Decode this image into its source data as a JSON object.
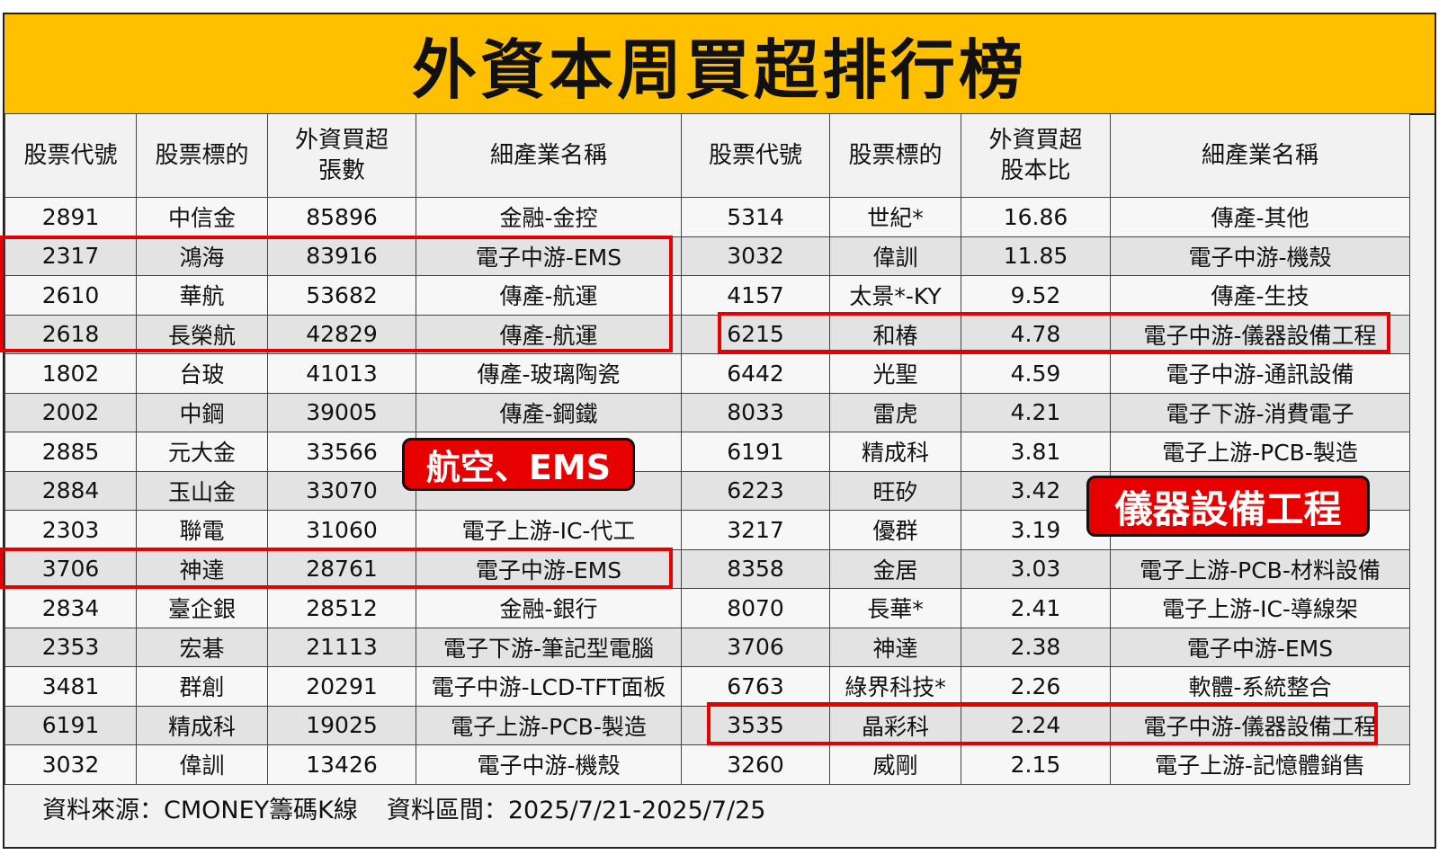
{
  "title": "外資本周買超排行榜",
  "left_headers": [
    "股票代號",
    "股票標的",
    "外資買超\n張數",
    "細產業名稱"
  ],
  "right_headers": [
    "股票代號",
    "股票標的",
    "外資買超\n股本比",
    "細產業名稱"
  ],
  "rows": [
    {
      "l_code": "2891",
      "l_name": "中信金",
      "l_value": "85896",
      "l_ind": "金融-金控",
      "r_code": "5314",
      "r_name": "世紀*",
      "r_value": "16.86",
      "r_ind": "傳產-其他"
    },
    {
      "l_code": "2317",
      "l_name": "鴻海",
      "l_value": "83916",
      "l_ind": "電子中游-EMS",
      "r_code": "3032",
      "r_name": "偉訓",
      "r_value": "11.85",
      "r_ind": "電子中游-機殼"
    },
    {
      "l_code": "2610",
      "l_name": "華航",
      "l_value": "53682",
      "l_ind": "傳產-航運",
      "r_code": "4157",
      "r_name": "太景*-KY",
      "r_value": "9.52",
      "r_ind": "傳產-生技"
    },
    {
      "l_code": "2618",
      "l_name": "長榮航",
      "l_value": "42829",
      "l_ind": "傳產-航運",
      "r_code": "6215",
      "r_name": "和椿",
      "r_value": "4.78",
      "r_ind": "電子中游-儀器設備工程"
    },
    {
      "l_code": "1802",
      "l_name": "台玻",
      "l_value": "41013",
      "l_ind": "傳產-玻璃陶瓷",
      "r_code": "6442",
      "r_name": "光聖",
      "r_value": "4.59",
      "r_ind": "電子中游-通訊設備"
    },
    {
      "l_code": "2002",
      "l_name": "中鋼",
      "l_value": "39005",
      "l_ind": "傳產-鋼鐵",
      "r_code": "8033",
      "r_name": "雷虎",
      "r_value": "4.21",
      "r_ind": "電子下游-消費電子"
    },
    {
      "l_code": "2885",
      "l_name": "元大金",
      "l_value": "33566",
      "l_ind": "",
      "r_code": "6191",
      "r_name": "精成科",
      "r_value": "3.81",
      "r_ind": "電子上游-PCB-製造"
    },
    {
      "l_code": "2884",
      "l_name": "玉山金",
      "l_value": "33070",
      "l_ind": "",
      "r_code": "6223",
      "r_name": "旺矽",
      "r_value": "3.42",
      "r_ind": ""
    },
    {
      "l_code": "2303",
      "l_name": "聯電",
      "l_value": "31060",
      "l_ind": "電子上游-IC-代工",
      "r_code": "3217",
      "r_name": "優群",
      "r_value": "3.19",
      "r_ind": ""
    },
    {
      "l_code": "3706",
      "l_name": "神達",
      "l_value": "28761",
      "l_ind": "電子中游-EMS",
      "r_code": "8358",
      "r_name": "金居",
      "r_value": "3.03",
      "r_ind": "電子上游-PCB-材料設備"
    },
    {
      "l_code": "2834",
      "l_name": "臺企銀",
      "l_value": "28512",
      "l_ind": "金融-銀行",
      "r_code": "8070",
      "r_name": "長華*",
      "r_value": "2.41",
      "r_ind": "電子上游-IC-導線架"
    },
    {
      "l_code": "2353",
      "l_name": "宏碁",
      "l_value": "21113",
      "l_ind": "電子下游-筆記型電腦",
      "r_code": "3706",
      "r_name": "神達",
      "r_value": "2.38",
      "r_ind": "電子中游-EMS"
    },
    {
      "l_code": "3481",
      "l_name": "群創",
      "l_value": "20291",
      "l_ind": "電子中游-LCD-TFT面板",
      "r_code": "6763",
      "r_name": "綠界科技*",
      "r_value": "2.26",
      "r_ind": "軟體-系統整合"
    },
    {
      "l_code": "6191",
      "l_name": "精成科",
      "l_value": "19025",
      "l_ind": "電子上游-PCB-製造",
      "r_code": "3535",
      "r_name": "晶彩科",
      "r_value": "2.24",
      "r_ind": "電子中游-儀器設備工程"
    },
    {
      "l_code": "3032",
      "l_name": "偉訓",
      "l_value": "13426",
      "l_ind": "電子中游-機殼",
      "r_code": "3260",
      "r_name": "威剛",
      "r_value": "2.15",
      "r_ind": "電子上游-記憶體銷售"
    }
  ],
  "footer": {
    "source": "資料來源：CMONEY籌碼K線",
    "period": "資料區間：2025/7/21-2025/7/25"
  },
  "callouts": {
    "left": "航空、EMS",
    "right": "儀器設備工程"
  },
  "colors": {
    "title_bg": "#ffc000",
    "highlight": "#e60000"
  }
}
